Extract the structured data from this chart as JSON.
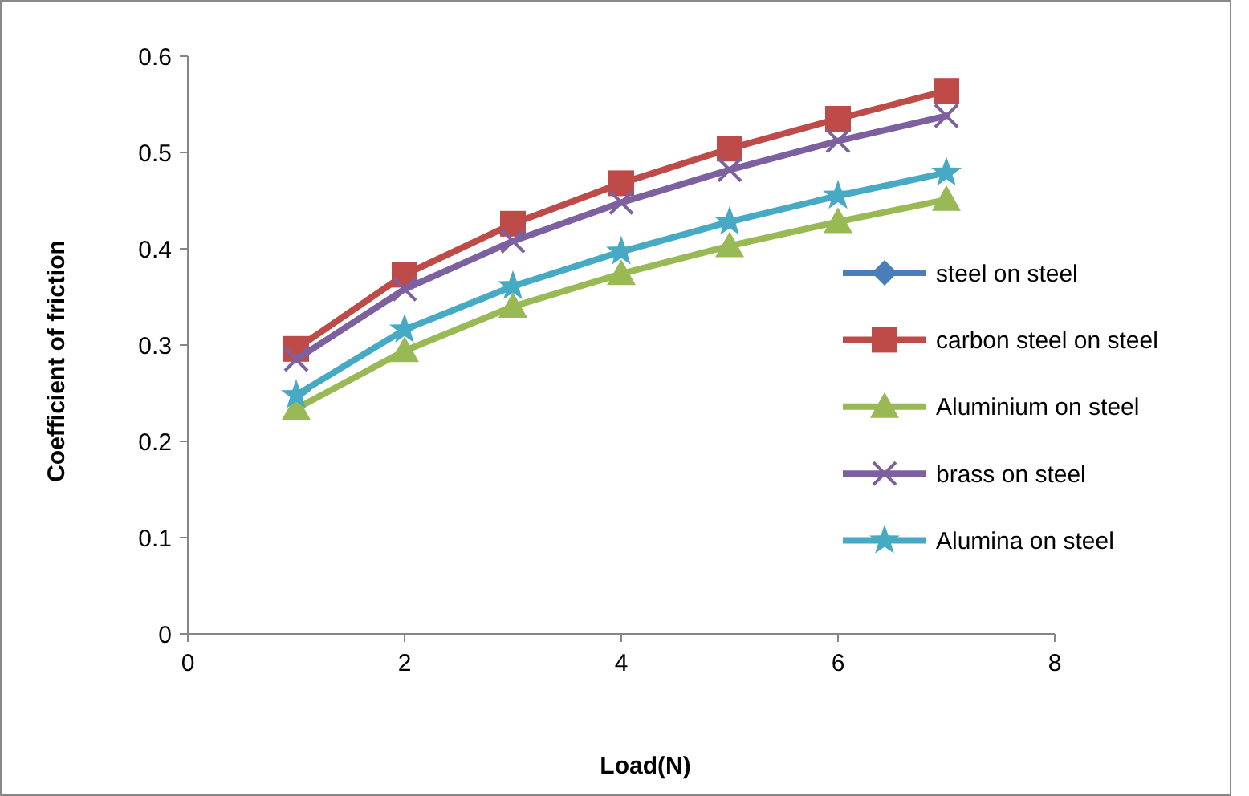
{
  "chart_data": {
    "type": "line",
    "xlabel": "Load(N)",
    "ylabel": "Coefficient of friction",
    "x": [
      1,
      2,
      3,
      4,
      5,
      6,
      7
    ],
    "xlim": [
      0,
      8
    ],
    "xticks": [
      0,
      2,
      4,
      6,
      8
    ],
    "ylim": [
      0,
      0.6
    ],
    "yticks": [
      0,
      0.1,
      0.2,
      0.3,
      0.4,
      0.5,
      0.6
    ],
    "grid": false,
    "legend": "right",
    "line_style": "solid",
    "series": [
      {
        "name": "steel on steel",
        "color": "#4a7ebb",
        "marker": "diamond",
        "values": [
          null,
          null,
          null,
          null,
          null,
          null,
          null
        ]
      },
      {
        "name": "carbon steel on steel",
        "color": "#be4b48",
        "marker": "square",
        "values": [
          0.296,
          0.373,
          0.426,
          0.468,
          0.504,
          0.535,
          0.564
        ]
      },
      {
        "name": "Aluminium on steel",
        "color": "#98b954",
        "marker": "triangle",
        "values": [
          0.234,
          0.294,
          0.34,
          0.374,
          0.403,
          0.428,
          0.451
        ]
      },
      {
        "name": "brass on steel",
        "color": "#7d60a0",
        "marker": "cross",
        "values": [
          0.285,
          0.358,
          0.408,
          0.448,
          0.482,
          0.512,
          0.538
        ]
      },
      {
        "name": "Alumina on steel",
        "color": "#46aac5",
        "marker": "star",
        "values": [
          0.248,
          0.316,
          0.361,
          0.397,
          0.428,
          0.455,
          0.479
        ]
      }
    ]
  }
}
